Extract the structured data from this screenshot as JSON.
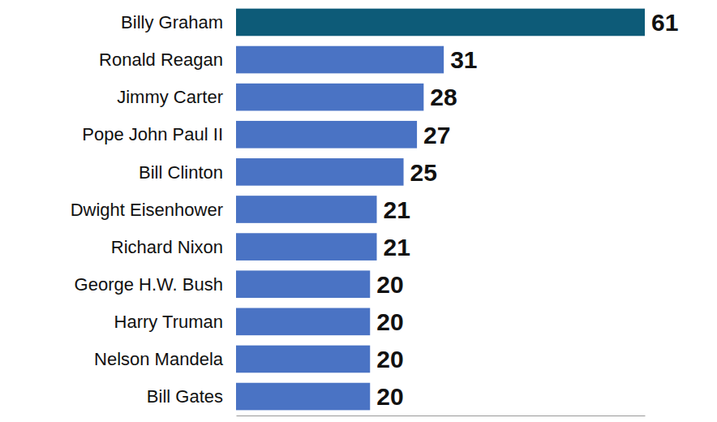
{
  "chart_data": {
    "type": "bar",
    "orientation": "horizontal",
    "data_labels": true,
    "tick_labels": false,
    "grid": false,
    "categories": [
      "Billy Graham",
      "Ronald Reagan",
      "Jimmy Carter",
      "Pope John Paul II",
      "Bill Clinton",
      "Dwight Eisenhower",
      "Richard Nixon",
      "George H.W. Bush",
      "Harry Truman",
      "Nelson Mandela",
      "Bill Gates"
    ],
    "values": [
      61,
      31,
      28,
      27,
      25,
      21,
      21,
      20,
      20,
      20,
      20
    ],
    "colors": [
      "#0d5b78",
      "#4a73c4",
      "#4a73c4",
      "#4a73c4",
      "#4a73c4",
      "#4a73c4",
      "#4a73c4",
      "#4a73c4",
      "#4a73c4",
      "#4a73c4",
      "#4a73c4"
    ],
    "xlim": [
      0,
      61
    ]
  }
}
